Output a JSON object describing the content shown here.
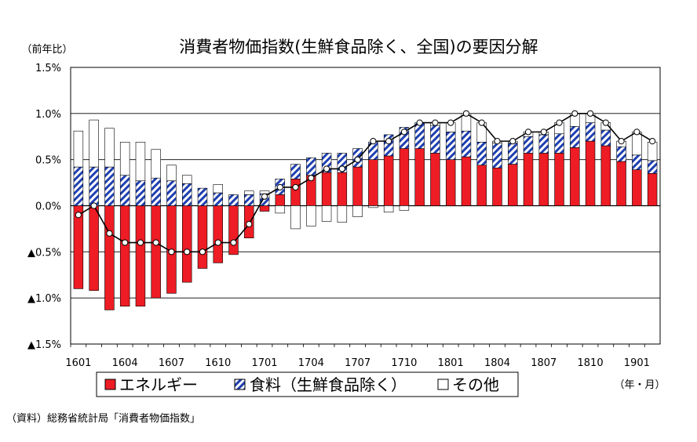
{
  "title": "消費者物価指数(生鮮食品除く、全国)の要因分解",
  "y_unit_label": "（前年比）",
  "x_unit_label": "（年・月）",
  "source": "（資料）総務省統計局「消費者物価指数」",
  "colors": {
    "energy": "#ee1c24",
    "food_stripe": "#1f3fb0",
    "other": "#ffffff",
    "line": "#000000"
  },
  "chart_data": {
    "type": "bar",
    "stacked": true,
    "ylim": [
      -1.5,
      1.5
    ],
    "y_ticks": [
      {
        "value": 1.5,
        "label": "1.5%"
      },
      {
        "value": 1.0,
        "label": "1.0%"
      },
      {
        "value": 0.5,
        "label": "0.5%"
      },
      {
        "value": 0.0,
        "label": "0.0%"
      },
      {
        "value": -0.5,
        "label": "▲0.5%"
      },
      {
        "value": -1.0,
        "label": "▲1.0%"
      },
      {
        "value": -1.5,
        "label": "▲1.5%"
      }
    ],
    "categories": [
      "1601",
      "1602",
      "1603",
      "1604",
      "1605",
      "1606",
      "1607",
      "1608",
      "1609",
      "1610",
      "1611",
      "1612",
      "1701",
      "1702",
      "1703",
      "1704",
      "1705",
      "1706",
      "1707",
      "1708",
      "1709",
      "1710",
      "1711",
      "1712",
      "1801",
      "1802",
      "1803",
      "1804",
      "1805",
      "1806",
      "1807",
      "1808",
      "1809",
      "1810",
      "1811",
      "1812",
      "1901",
      "1902"
    ],
    "x_tick_labels": [
      "1601",
      "1604",
      "1607",
      "1610",
      "1701",
      "1704",
      "1707",
      "1710",
      "1801",
      "1804",
      "1807",
      "1810",
      "1901"
    ],
    "legend": [
      "エネルギー",
      "食料（生鮮食品除く）",
      "その他"
    ],
    "series": [
      {
        "name": "エネルギー",
        "values": [
          -0.9,
          -0.92,
          -1.13,
          -1.09,
          -1.09,
          -1.0,
          -0.95,
          -0.83,
          -0.68,
          -0.62,
          -0.53,
          -0.35,
          -0.06,
          0.12,
          0.29,
          0.33,
          0.36,
          0.36,
          0.42,
          0.5,
          0.54,
          0.62,
          0.62,
          0.57,
          0.5,
          0.53,
          0.44,
          0.41,
          0.45,
          0.57,
          0.57,
          0.57,
          0.63,
          0.7,
          0.65,
          0.48,
          0.39,
          0.35
        ]
      },
      {
        "name": "食料（生鮮食品除く）",
        "values": [
          0.42,
          0.42,
          0.42,
          0.33,
          0.27,
          0.3,
          0.27,
          0.24,
          0.19,
          0.14,
          0.12,
          0.12,
          0.13,
          0.17,
          0.16,
          0.19,
          0.21,
          0.21,
          0.2,
          0.19,
          0.23,
          0.23,
          0.28,
          0.3,
          0.3,
          0.28,
          0.25,
          0.27,
          0.23,
          0.18,
          0.2,
          0.21,
          0.23,
          0.2,
          0.17,
          0.16,
          0.16,
          0.14
        ]
      },
      {
        "name": "その他",
        "values": [
          0.39,
          0.51,
          0.42,
          0.36,
          0.42,
          0.31,
          0.17,
          0.09,
          0.0,
          0.09,
          0.0,
          0.04,
          0.03,
          -0.08,
          -0.25,
          -0.22,
          -0.17,
          -0.18,
          -0.12,
          -0.02,
          -0.07,
          -0.05,
          0.0,
          0.03,
          0.1,
          0.19,
          0.21,
          0.02,
          0.02,
          0.05,
          0.03,
          0.12,
          0.14,
          0.1,
          0.08,
          0.06,
          0.25,
          0.2
        ]
      },
      {
        "name": "",
        "type": "line",
        "values": [
          -0.1,
          0.0,
          -0.3,
          -0.4,
          -0.4,
          -0.4,
          -0.5,
          -0.5,
          -0.5,
          -0.4,
          -0.4,
          -0.2,
          0.1,
          0.2,
          0.2,
          0.3,
          0.4,
          0.4,
          0.5,
          0.7,
          0.7,
          0.8,
          0.9,
          0.9,
          0.9,
          1.0,
          0.9,
          0.7,
          0.7,
          0.8,
          0.8,
          0.9,
          1.0,
          1.0,
          0.9,
          0.7,
          0.8,
          0.7
        ]
      }
    ],
    "grid": true,
    "legend_position": "bottom"
  }
}
